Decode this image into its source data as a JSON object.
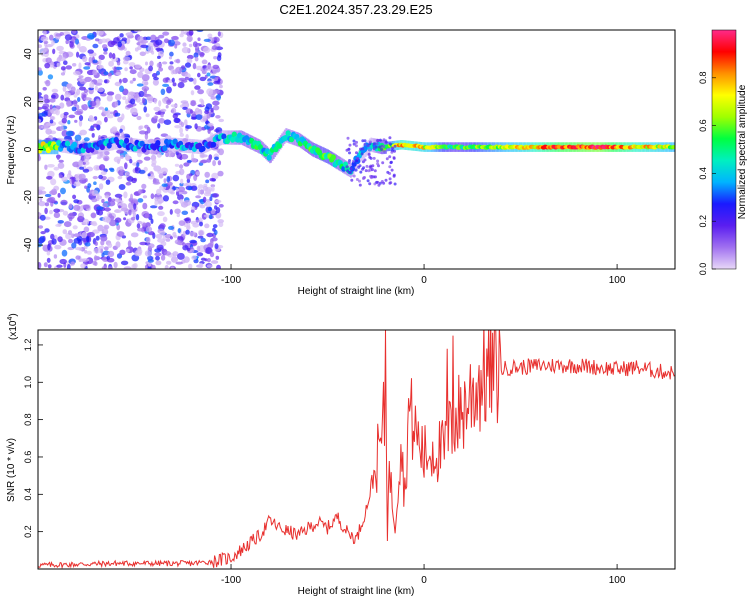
{
  "title": "C2E1.2024.357.23.29.E25",
  "chart_data": [
    {
      "type": "heatmap",
      "title": "C2E1.2024.357.23.29.E25",
      "xlabel": "Height of straight line (km)",
      "ylabel": "Frequency (Hz)",
      "xlim": [
        -200,
        130
      ],
      "ylim": [
        -50,
        50
      ],
      "x_ticks": [
        -100,
        0,
        100
      ],
      "x_tick_labels": [
        "-100",
        "0",
        "100"
      ],
      "y_ticks": [
        -40,
        -20,
        0,
        20,
        40
      ],
      "y_tick_labels": [
        "-40",
        "-20",
        "0",
        "20",
        "40"
      ],
      "colorbar": {
        "label": "Normalized spectral amplitude",
        "range": [
          0,
          1
        ],
        "ticks": [
          0.0,
          0.2,
          0.4,
          0.6,
          0.8
        ],
        "tick_labels": [
          "0.0",
          "0.2",
          "0.4",
          "0.6",
          "0.8"
        ],
        "colors": [
          "#e8d8f8",
          "#a070f0",
          "#5a1ef0",
          "#1a1aff",
          "#00b4ff",
          "#00f0c0",
          "#00ff40",
          "#a0ff00",
          "#ffff00",
          "#ff9000",
          "#ff0000",
          "#ff2a8a"
        ]
      },
      "trace": [
        {
          "x": -190,
          "f": 2,
          "a": 0.35
        },
        {
          "x": -175,
          "f": 0,
          "a": 0.3
        },
        {
          "x": -160,
          "f": 3,
          "a": 0.35
        },
        {
          "x": -145,
          "f": 1,
          "a": 0.3
        },
        {
          "x": -130,
          "f": 2,
          "a": 0.35
        },
        {
          "x": -115,
          "f": 1,
          "a": 0.3
        },
        {
          "x": -105,
          "f": 5,
          "a": 0.35
        },
        {
          "x": -95,
          "f": 5,
          "a": 0.45
        },
        {
          "x": -85,
          "f": 1,
          "a": 0.45
        },
        {
          "x": -80,
          "f": -3,
          "a": 0.45
        },
        {
          "x": -72,
          "f": 6,
          "a": 0.4
        },
        {
          "x": -65,
          "f": 4,
          "a": 0.45
        },
        {
          "x": -58,
          "f": 0,
          "a": 0.5
        },
        {
          "x": -50,
          "f": -3,
          "a": 0.55
        },
        {
          "x": -44,
          "f": -6,
          "a": 0.45
        },
        {
          "x": -38,
          "f": -9,
          "a": 0.4
        },
        {
          "x": -34,
          "f": -3,
          "a": 0.35
        },
        {
          "x": -28,
          "f": 2,
          "a": 0.35
        },
        {
          "x": -22,
          "f": 1,
          "a": 0.5
        },
        {
          "x": -12,
          "f": 2,
          "a": 0.75
        },
        {
          "x": 0,
          "f": 1,
          "a": 0.7
        },
        {
          "x": 15,
          "f": 1,
          "a": 0.5
        },
        {
          "x": 30,
          "f": 1,
          "a": 0.6
        },
        {
          "x": 50,
          "f": 1,
          "a": 0.7
        },
        {
          "x": 70,
          "f": 1,
          "a": 0.85
        },
        {
          "x": 90,
          "f": 1,
          "a": 0.9
        },
        {
          "x": 110,
          "f": 1,
          "a": 0.75
        },
        {
          "x": 130,
          "f": 1,
          "a": 0.65
        }
      ]
    },
    {
      "type": "line",
      "xlabel": "Height of straight line (km)",
      "ylabel": "SNR (10 * v/v)",
      "y_scale_label": "(x10",
      "y_scale_exponent": "4",
      "y_scale_close": ")",
      "xlim": [
        -200,
        130
      ],
      "ylim": [
        0,
        1.28
      ],
      "x_ticks": [
        -100,
        0,
        100
      ],
      "x_tick_labels": [
        "-100",
        "0",
        "100"
      ],
      "y_ticks": [
        0.2,
        0.4,
        0.6,
        0.8,
        1.0,
        1.2
      ],
      "y_tick_labels": [
        "0.2",
        "0.4",
        "0.6",
        "0.8",
        "1.0",
        "1.2"
      ],
      "series": [
        {
          "name": "SNR",
          "color": "#e8302e",
          "x": [
            -200,
            -180,
            -160,
            -140,
            -120,
            -110,
            -100,
            -95,
            -90,
            -85,
            -80,
            -75,
            -70,
            -65,
            -60,
            -55,
            -50,
            -45,
            -40,
            -35,
            -30,
            -25,
            -22,
            -20,
            -18,
            -15,
            -12,
            -10,
            -8,
            -5,
            0,
            5,
            10,
            15,
            20,
            25,
            30,
            35,
            40,
            45,
            50,
            60,
            70,
            80,
            90,
            100,
            110,
            120,
            130
          ],
          "values": [
            0.02,
            0.025,
            0.03,
            0.03,
            0.03,
            0.04,
            0.06,
            0.1,
            0.14,
            0.18,
            0.26,
            0.22,
            0.2,
            0.18,
            0.22,
            0.25,
            0.22,
            0.28,
            0.2,
            0.16,
            0.32,
            0.55,
            0.7,
            0.85,
            0.5,
            0.25,
            0.7,
            0.4,
            0.85,
            0.75,
            0.6,
            0.65,
            0.62,
            0.78,
            0.85,
            0.95,
            1.02,
            1.06,
            1.07,
            1.08,
            1.08,
            1.09,
            1.09,
            1.09,
            1.08,
            1.07,
            1.08,
            1.06,
            1.05
          ]
        }
      ],
      "spikes": [
        {
          "x": -20,
          "value": 1.28
        },
        {
          "x": -19,
          "value": 0.15
        },
        {
          "x": 12,
          "value": 1.18
        },
        {
          "x": 15,
          "value": 1.25
        },
        {
          "x": 14,
          "value": 0.85
        }
      ]
    }
  ]
}
